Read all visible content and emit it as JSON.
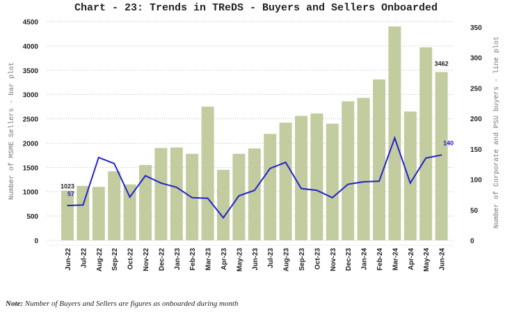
{
  "chart_data": {
    "type": "bar+line",
    "title": "Chart - 23: Trends in TReDS - Buyers and Sellers Onboarded",
    "categories": [
      "Jun-22",
      "Jul-22",
      "Aug-22",
      "Sep-22",
      "Oct-22",
      "Nov-22",
      "Dec-22",
      "Jan-23",
      "Feb-23",
      "Mar-23",
      "Apr-23",
      "May-23",
      "Jun-23",
      "Jul-23",
      "Aug-23",
      "Sep-23",
      "Oct-23",
      "Nov-23",
      "Dec-23",
      "Jan-24",
      "Feb-24",
      "Mar-24",
      "Apr-24",
      "May-24",
      "Jun-24"
    ],
    "series": [
      {
        "name": "Number of MSME Sellers",
        "type": "bar",
        "axis": "left",
        "color": "#c2cc9f",
        "values": [
          1023,
          1120,
          1100,
          1420,
          1150,
          1550,
          1900,
          1910,
          1780,
          2750,
          1450,
          1780,
          1890,
          2190,
          2420,
          2560,
          2610,
          2400,
          2860,
          2930,
          3310,
          4400,
          2650,
          3970,
          3462
        ]
      },
      {
        "name": "Number of Corporate and PSU buyers",
        "type": "line",
        "axis": "right",
        "color": "#2222cc",
        "values": [
          57,
          58,
          136,
          126,
          71,
          106,
          94,
          87,
          70,
          69,
          37,
          73,
          82,
          118,
          128,
          85,
          82,
          70,
          92,
          96,
          97,
          168,
          94,
          135,
          140
        ]
      }
    ],
    "data_labels": {
      "first_bar": "1023",
      "first_line": "57",
      "last_bar": "3462",
      "last_line": "140"
    },
    "ylabel": "Number of MSME Sellers - bar plot",
    "y2label": "Number of Corporate and PSU buyers - line plot",
    "ylim": [
      0,
      4500
    ],
    "y2lim": [
      0,
      359
    ],
    "yticks": [
      "0",
      "500",
      "1000",
      "1500",
      "2000",
      "2500",
      "3000",
      "3500",
      "4000",
      "4500"
    ],
    "y2ticks": [
      "0",
      "50",
      "100",
      "150",
      "200",
      "250",
      "300",
      "350"
    ],
    "grid": true
  },
  "note": {
    "label": "Note:",
    "text": " Number of Buyers and Sellers are figures as onboarded during month"
  }
}
